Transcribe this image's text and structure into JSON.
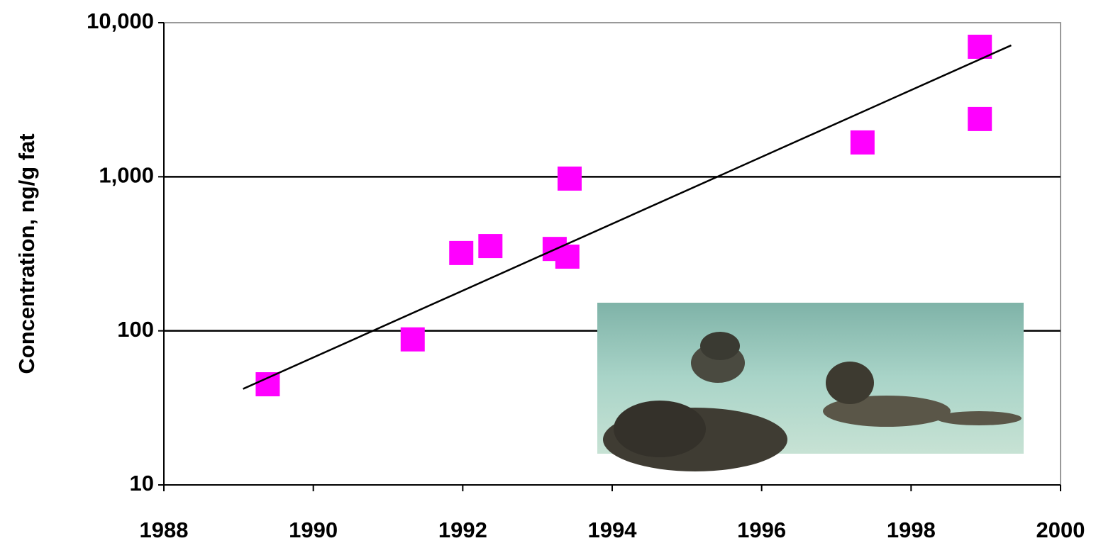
{
  "chart_data": {
    "type": "scatter",
    "y_label": "Concentration, ng/g fat",
    "log_y": true,
    "grid": true,
    "xlim": [
      1988,
      2000
    ],
    "xticks": [
      1988,
      1990,
      1992,
      1994,
      1996,
      1998,
      2000
    ],
    "ylim": [
      10,
      10000
    ],
    "yticks": [
      10,
      100,
      {
        "value": 1000,
        "label": "1,000"
      },
      {
        "value": 10000,
        "label": "10,000"
      }
    ],
    "series": [
      {
        "kind": "points",
        "color": "#ff00ff",
        "x": [
          1989.39,
          1991.33,
          1991.98,
          1992.37,
          1993.23,
          1993.4,
          1993.43,
          1997.35,
          1998.92,
          1998.92
        ],
        "values": [
          45,
          88,
          320,
          355,
          340,
          303,
          973,
          1670,
          2370,
          6980
        ]
      },
      {
        "kind": "trendline",
        "color": "#000000",
        "x": [
          1989.06,
          1999.34
        ],
        "values": [
          42,
          7130
        ]
      }
    ]
  }
}
